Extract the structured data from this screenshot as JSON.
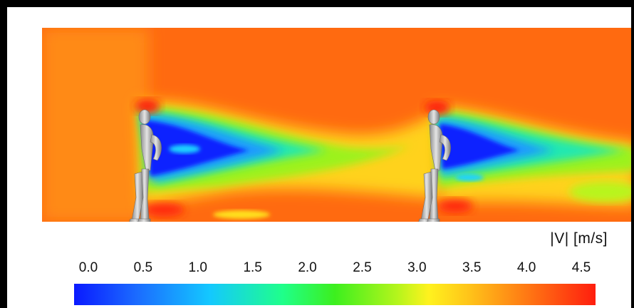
{
  "legend": {
    "unit_label": "|V|  [m/s]",
    "ticks": [
      "0.0",
      "0.5",
      "1.0",
      "1.5",
      "2.0",
      "2.5",
      "3.0",
      "3.5",
      "4.0",
      "4.5"
    ],
    "range": [
      0.0,
      4.5
    ]
  },
  "colors": {
    "background_flow": "#ff6a10",
    "low_velocity": "#0a1aff",
    "mid_velocity": "#3cef1e",
    "high_velocity": "#ff1e0e"
  }
}
